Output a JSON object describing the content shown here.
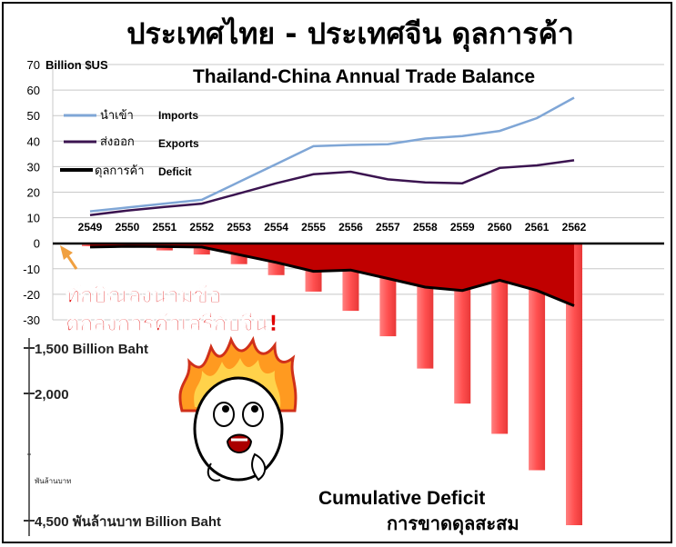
{
  "header": {
    "title_th": "ประเทศไทย - ประเทศจีน ดุลการค้า",
    "title_en": "Thailand-China Annual Trade Balance"
  },
  "chart_data": [
    {
      "type": "line",
      "title": "Thailand-China Annual Trade Balance",
      "ylabel": "Billion $US",
      "ylim": [
        -30,
        70
      ],
      "yticks": [
        70,
        60,
        50,
        40,
        30,
        20,
        10,
        0,
        -10,
        -20,
        -30
      ],
      "categories": [
        "2549",
        "2550",
        "2551",
        "2552",
        "2553",
        "2554",
        "2555",
        "2556",
        "2557",
        "2558",
        "2559",
        "2560",
        "2561",
        "2562"
      ],
      "series": [
        {
          "name": "นำเข้า",
          "name_en": "Imports",
          "color": "#7fa6d6",
          "values": [
            12.5,
            14,
            15.5,
            17,
            24,
            31,
            38,
            38.5,
            38.8,
            41,
            42,
            44,
            49,
            57
          ]
        },
        {
          "name": "ส่งออก",
          "name_en": "Exports",
          "color": "#3b1450",
          "values": [
            11,
            12.8,
            14.2,
            15.5,
            19.5,
            23.5,
            27,
            28,
            25,
            23.8,
            23.5,
            29.5,
            30.5,
            32.5
          ]
        },
        {
          "name": "ดุลการค้า",
          "name_en": "Deficit",
          "color": "#000000",
          "values": [
            -1.5,
            -1.2,
            -1.3,
            -1.5,
            -4.5,
            -7.5,
            -11,
            -10.5,
            -13.8,
            -17.2,
            -18.5,
            -14.5,
            -18.5,
            -24.5
          ]
        }
      ],
      "grid": true,
      "legend_position": "left"
    },
    {
      "type": "bar",
      "title": "Cumulative Deficit",
      "title_th": "การขาดดุลสะสม",
      "categories": [
        "2549",
        "2550",
        "2551",
        "2552",
        "2553",
        "2554",
        "2555",
        "2556",
        "2557",
        "2558",
        "2559",
        "2560",
        "2561",
        "2562"
      ],
      "values": [
        30,
        60,
        100,
        160,
        300,
        460,
        700,
        980,
        1350,
        1820,
        2330,
        2770,
        3300,
        4100
      ],
      "color": "#ff5a5a",
      "axis_labels": [
        "1,500 Billion Baht",
        "2,000",
        "พันล้านบาท",
        "4,500  พันล้านบาท Billion Baht"
      ]
    }
  ],
  "annotation": {
    "line1": "ทักษิณลงนามข้อ",
    "line2": "ตกลงการค้าเสรีกับจีน!"
  },
  "cumulative_label": {
    "en": "Cumulative Deficit",
    "th": "การขาดดุลสะสม"
  }
}
